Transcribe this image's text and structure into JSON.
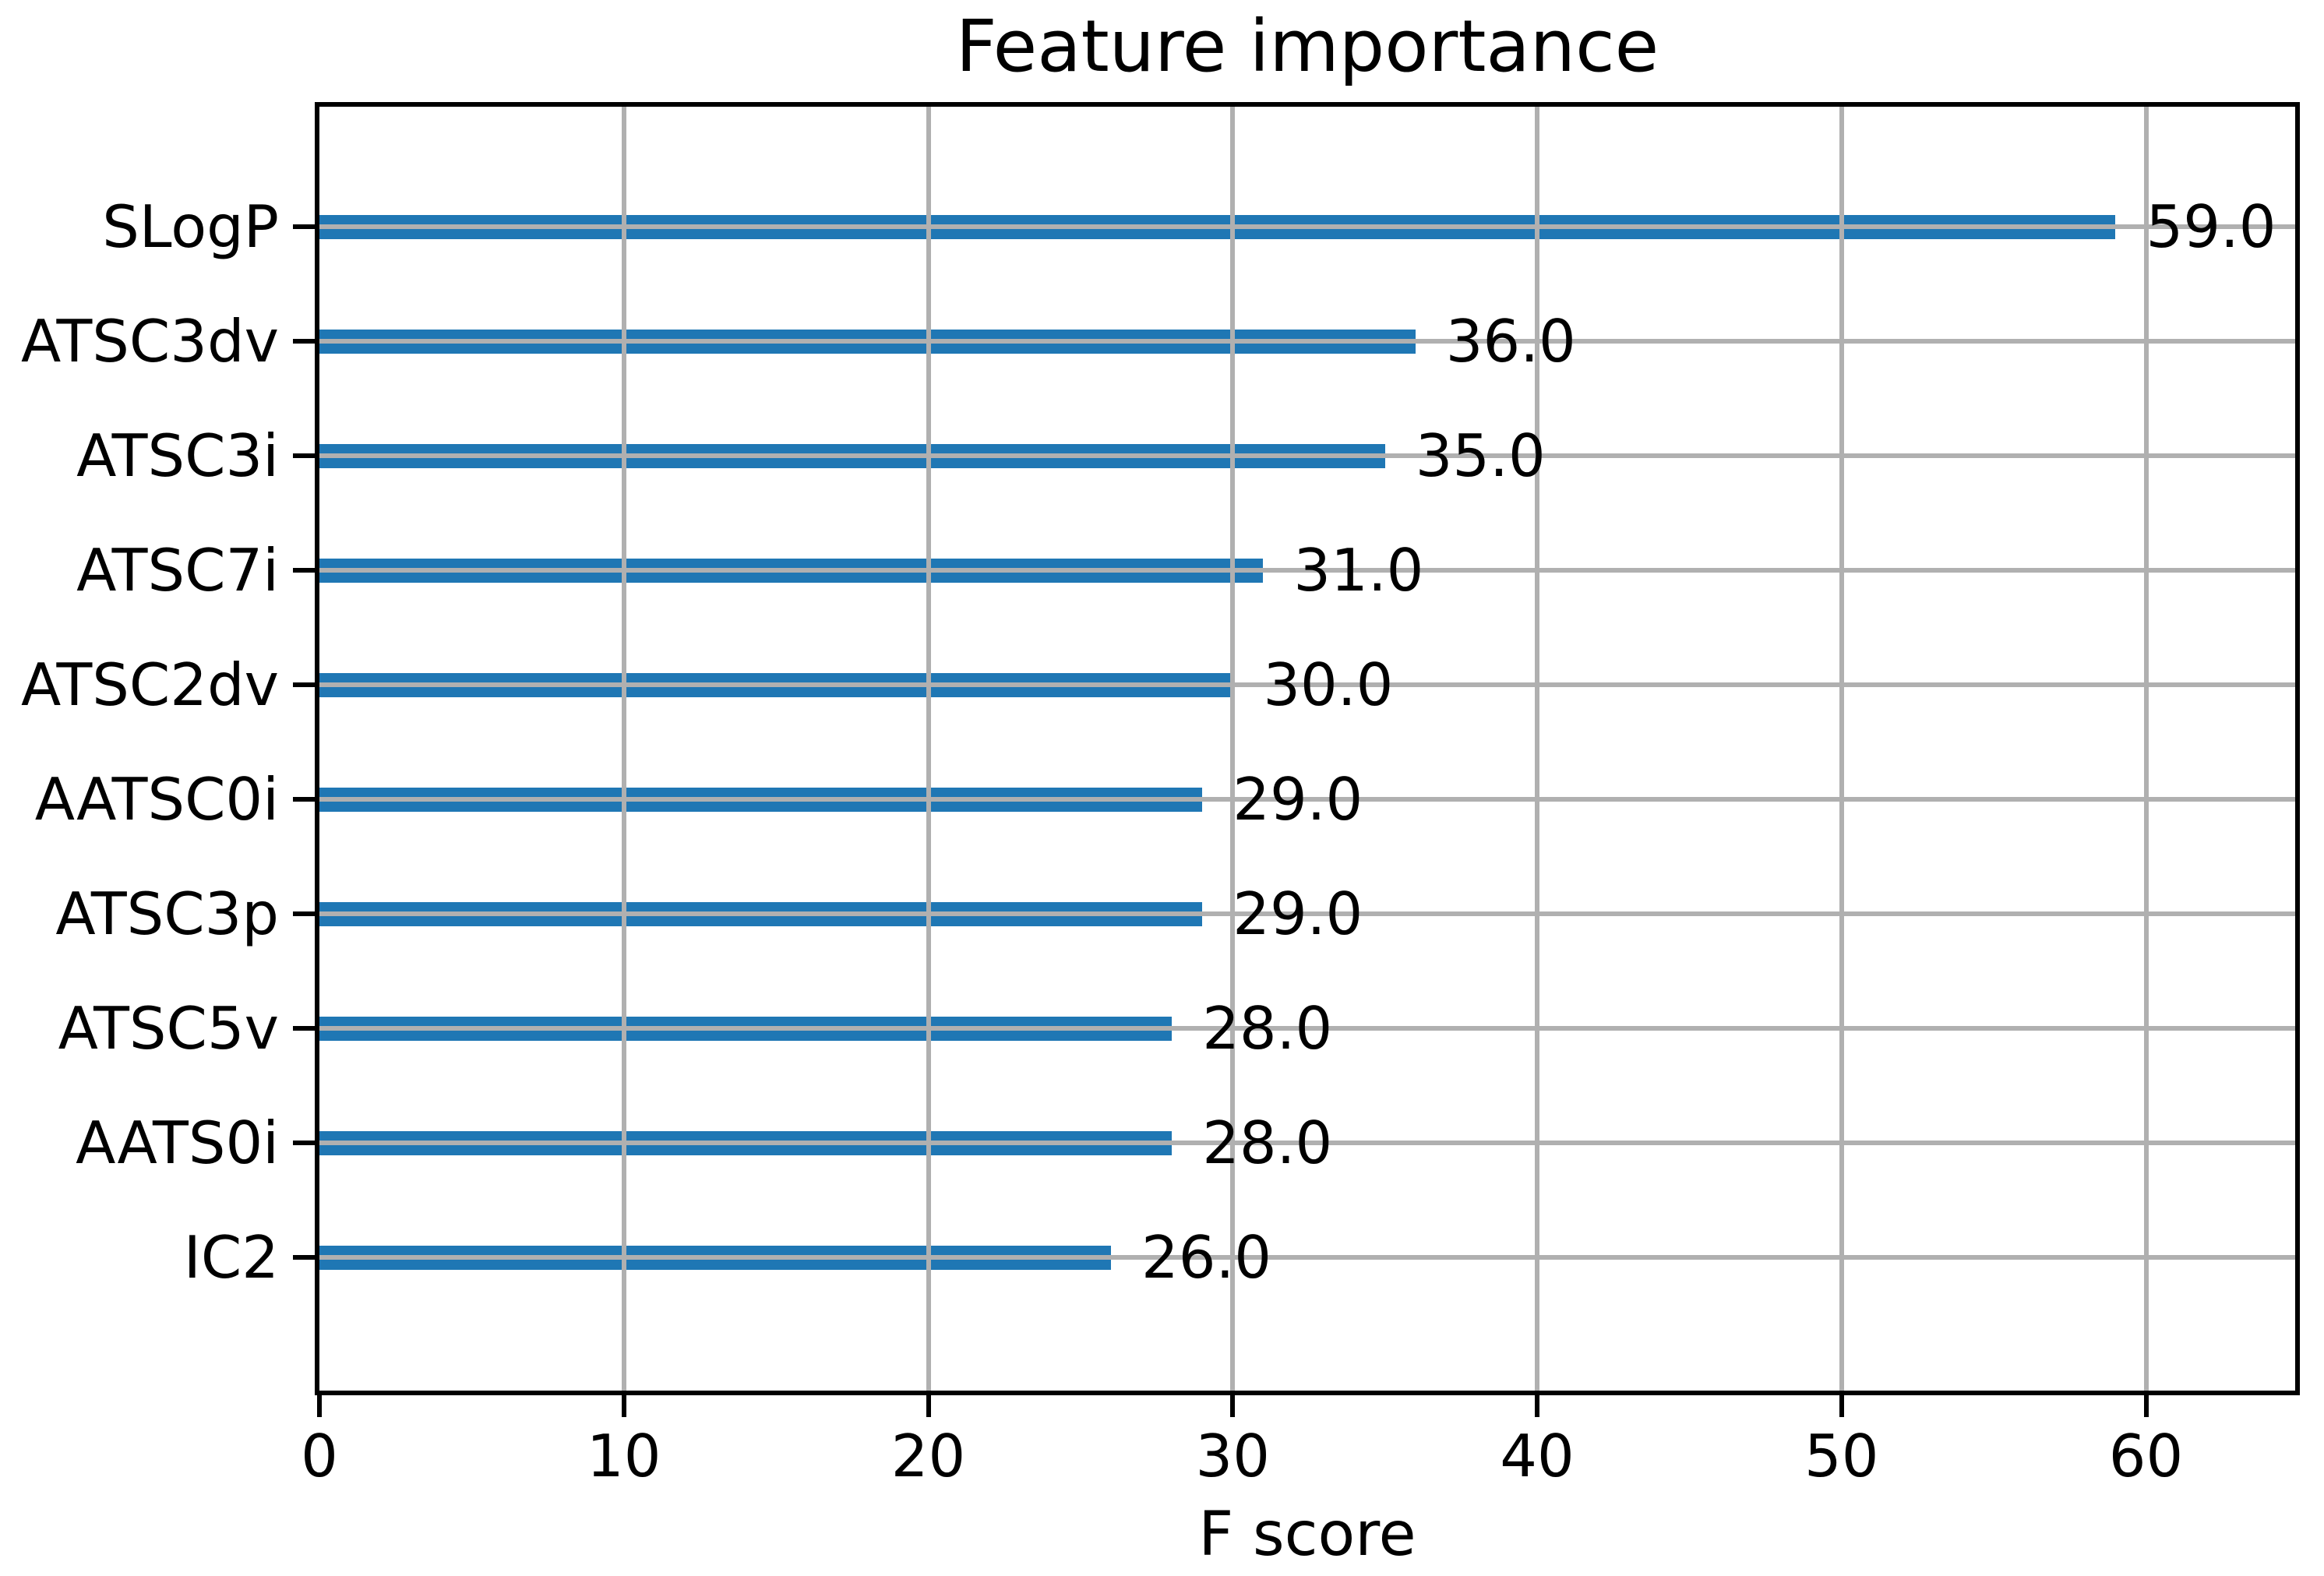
{
  "chart_data": {
    "type": "bar",
    "orientation": "horizontal",
    "title": "Feature importance",
    "xlabel": "F score",
    "ylabel": "",
    "categories": [
      "SLogP",
      "ATSC3dv",
      "ATSC3i",
      "ATSC7i",
      "ATSC2dv",
      "AATSC0i",
      "ATSC3p",
      "ATSC5v",
      "AATS0i",
      "IC2"
    ],
    "values": [
      59.0,
      36.0,
      35.0,
      31.0,
      30.0,
      29.0,
      29.0,
      28.0,
      28.0,
      26.0
    ],
    "value_labels": [
      "59.0",
      "36.0",
      "35.0",
      "31.0",
      "30.0",
      "29.0",
      "29.0",
      "28.0",
      "28.0",
      "26.0"
    ],
    "x_ticks": [
      0,
      10,
      20,
      30,
      40,
      50,
      60
    ],
    "xlim": [
      0,
      64.9
    ],
    "grid": true,
    "legend": "none",
    "bar_color": "#1f77b4",
    "grid_color": "#b0b0b0",
    "spine_color": "#000000"
  }
}
